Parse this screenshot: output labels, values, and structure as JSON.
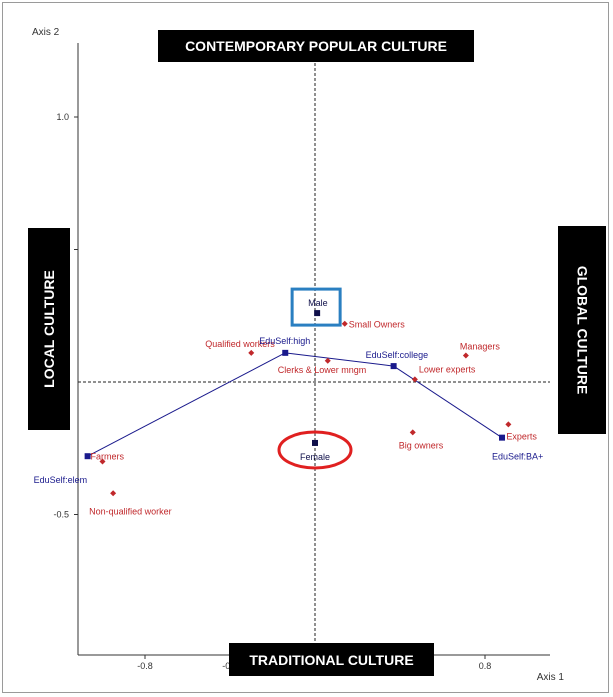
{
  "chart_data": {
    "type": "scatter",
    "xlabel": "Axis 1",
    "ylabel": "Axis 2",
    "xlim": [
      -1.05,
      1.05
    ],
    "ylim": [
      -0.82,
      1.28
    ],
    "x_ticks": [
      "-0.8",
      "-0.4",
      "0.8"
    ],
    "y_ticks": [
      "1.0",
      "",
      "-0.5"
    ],
    "y_tick_values": [
      1.0,
      0.5,
      -0.5
    ],
    "x_tick_values": [
      -0.8,
      -0.4,
      0.8
    ],
    "reference_lines": {
      "x": 0,
      "y": 0
    },
    "categories": [
      {
        "label": "Small Owners",
        "x": 0.14,
        "y": 0.22
      },
      {
        "label": "Qualified workers",
        "x": -0.3,
        "y": 0.11
      },
      {
        "label": "Managers",
        "x": 0.71,
        "y": 0.1
      },
      {
        "label": "Clerks & Lower mngm",
        "x": 0.06,
        "y": 0.08
      },
      {
        "label": "Lower experts",
        "x": 0.47,
        "y": 0.01
      },
      {
        "label": "Big owners",
        "x": 0.46,
        "y": -0.19
      },
      {
        "label": "Experts",
        "x": 0.91,
        "y": -0.16
      },
      {
        "label": "Farmers",
        "x": -1.0,
        "y": -0.3
      },
      {
        "label": "Non-qualified worker",
        "x": -0.95,
        "y": -0.42
      }
    ],
    "education_path": [
      {
        "label": "EduSelf:elem",
        "x": -1.07,
        "y": -0.28
      },
      {
        "label": "EduSelf:high",
        "x": -0.14,
        "y": 0.11
      },
      {
        "label": "EduSelf:college",
        "x": 0.37,
        "y": 0.06
      },
      {
        "label": "EduSelf:BA+",
        "x": 0.88,
        "y": -0.21
      }
    ],
    "gender": [
      {
        "label": "Male",
        "x": 0.01,
        "y": 0.26,
        "highlight": "box"
      },
      {
        "label": "Female",
        "x": 0.0,
        "y": -0.23,
        "highlight": "ellipse"
      }
    ],
    "colors": {
      "category": "#c0282b",
      "education": "#1a1a8c",
      "gender": "#10104a",
      "box_highlight": "#2a7fc1",
      "ellipse_highlight": "#e02020",
      "banner_bg": "#000000",
      "banner_text": "#ffffff"
    }
  },
  "banners": {
    "top": "CONTEMPORARY POPULAR CULTURE",
    "bottom": "TRADITIONAL CULTURE",
    "left": "LOCAL CULTURE",
    "right": "GLOBAL CULTURE"
  }
}
